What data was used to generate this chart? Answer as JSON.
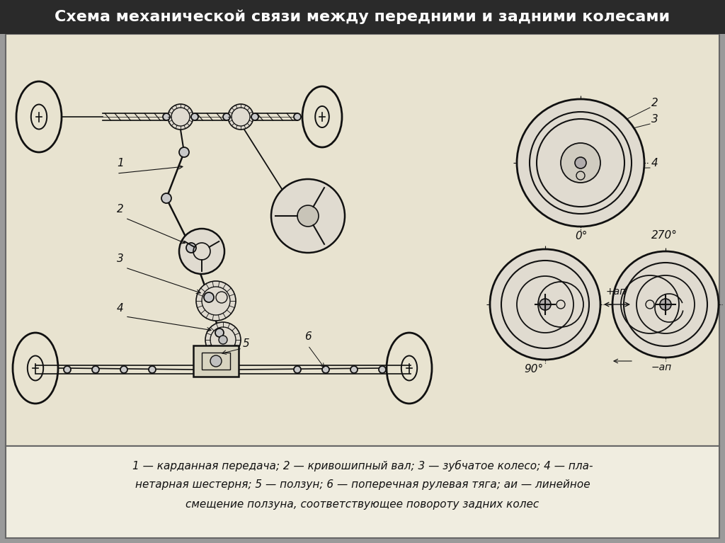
{
  "title": "Схема механической связи между передними и задними колесами",
  "bg_color": "#9a9a9a",
  "diagram_bg": "#e8e3d0",
  "caption_bg": "#f0ede0",
  "line_color": "#111111",
  "caption_lines": [
    "1 — карданная передача; 2 — кривошипный вал; 3 — зубчатое колесо; 4 — пла-",
    "нетарная шестерня; 5 — ползун; 6 — поперечная рулевая тяга; aи — линейное",
    "смещение ползуна, соответствующее повороту задних колес"
  ]
}
